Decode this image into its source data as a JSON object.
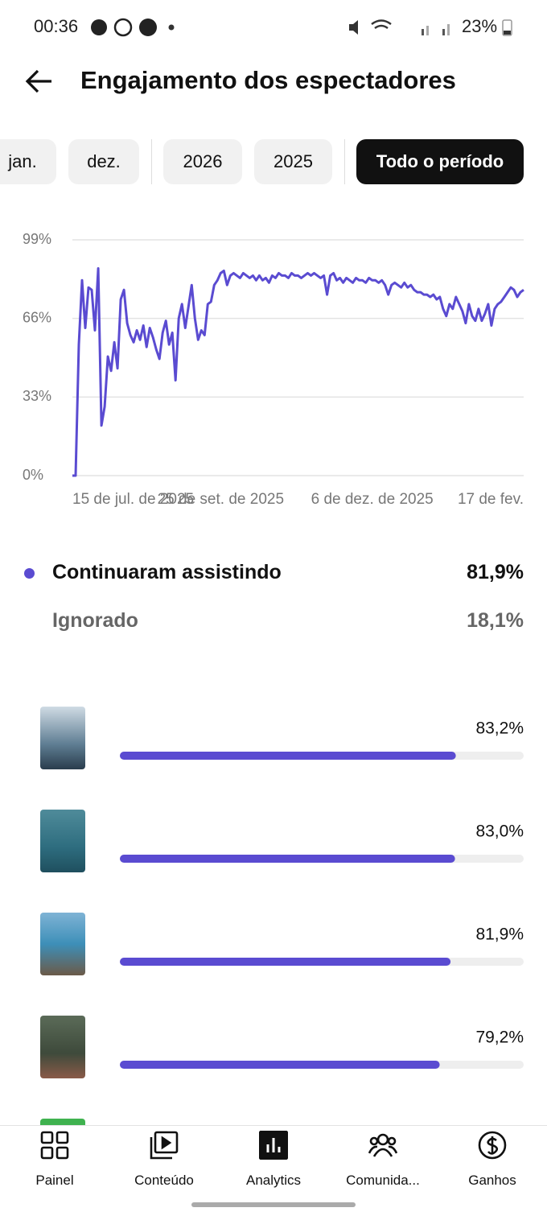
{
  "status_bar": {
    "time": "00:36",
    "battery": "23%"
  },
  "header": {
    "title": "Engajamento dos espectadores"
  },
  "filters": {
    "items": [
      "jan.",
      "dez.",
      "2026",
      "2025",
      "Todo o período"
    ],
    "selected": 4
  },
  "chart_data": {
    "type": "line",
    "series": [
      {
        "color": "#5a4bd1",
        "values": [
          0,
          0,
          55,
          82,
          62,
          79,
          78,
          61,
          87,
          21,
          29,
          50,
          44,
          56,
          45,
          74,
          78,
          64,
          59,
          56,
          61,
          57,
          63,
          54,
          62,
          58,
          53,
          49,
          60,
          65,
          55,
          60,
          40,
          66,
          72,
          62,
          71,
          80,
          66,
          57,
          61,
          59,
          72,
          73,
          80,
          82,
          85,
          86,
          80,
          84,
          85,
          84,
          83,
          85,
          84,
          83,
          84,
          82,
          84,
          82,
          83,
          81,
          84,
          83,
          85,
          84,
          84,
          83,
          85,
          84,
          84,
          83,
          84,
          85,
          84,
          85,
          84,
          83,
          84,
          76,
          84,
          85,
          82,
          83,
          81,
          83,
          82,
          81,
          83,
          82,
          82,
          81,
          83,
          82,
          82,
          81,
          82,
          80,
          76,
          80,
          81,
          80,
          79,
          81,
          79,
          80,
          78,
          77,
          77,
          76,
          76,
          75,
          76,
          74,
          75,
          70,
          67,
          72,
          70,
          75,
          72,
          69,
          64,
          72,
          67,
          65,
          70,
          65,
          68,
          72,
          63,
          70,
          72,
          73,
          75,
          77,
          79,
          78,
          75,
          77,
          78
        ]
      }
    ],
    "xlim": [
      0,
      140
    ],
    "xticks": [
      {
        "value": 0,
        "label": "15 de jul. de 2025"
      },
      {
        "value": 46,
        "label": "25 de set. de 2025"
      },
      {
        "value": 93,
        "label": "6 de dez. de 2025"
      },
      {
        "value": 140,
        "label": "17 de fev."
      }
    ],
    "ylim": [
      0,
      99
    ],
    "yticks": [
      {
        "value": 0,
        "label": "0%"
      },
      {
        "value": 33,
        "label": "33%"
      },
      {
        "value": 66,
        "label": "66%"
      },
      {
        "value": 99,
        "label": "99%"
      }
    ],
    "grid": true
  },
  "legend": [
    {
      "name": "Continuaram assistindo",
      "value": "81,9%",
      "color": "#5a4bd1"
    },
    {
      "name": "Ignorado",
      "value": "18,1%"
    }
  ],
  "videos": {
    "type": "bar",
    "values": [
      83.2,
      83.0,
      81.9,
      79.2
    ],
    "value_labels": [
      "83,2%",
      "83,0%",
      "81,9%",
      "79,2%"
    ],
    "xlim": [
      0,
      100
    ],
    "color": "#5a4bd1"
  },
  "nav": [
    "Painel",
    "Conteúdo",
    "Analytics",
    "Comunida...",
    "Ganhos"
  ]
}
